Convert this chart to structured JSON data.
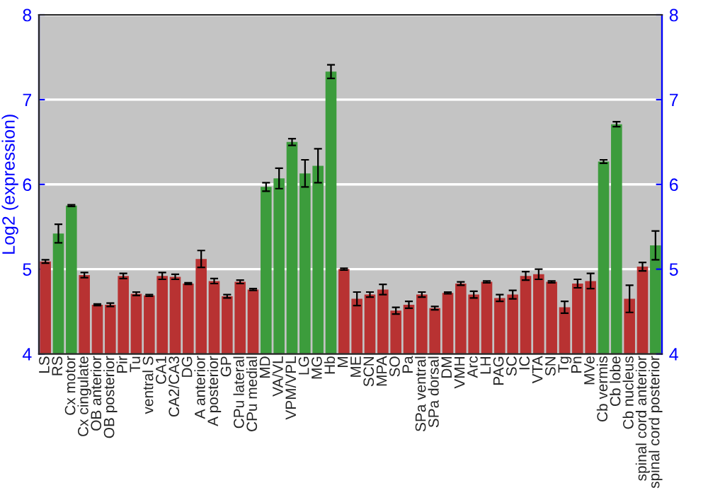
{
  "chart_data": {
    "type": "bar",
    "ylabel": "Log2 (expression)",
    "categories": [
      "LS",
      "RS",
      "Cx motor",
      "Cx cingulate",
      "OB anterior",
      "OB posterior",
      "Pir",
      "Tu",
      "ventral S",
      "CA1",
      "CA2/CA3",
      "DG",
      "A anterior",
      "A posterior",
      "GP",
      "CPu lateral",
      "CPu medial",
      "MD",
      "VA/VL",
      "VPM/VPL",
      "LG",
      "MG",
      "Hb",
      "M",
      "ME",
      "SCN",
      "MPA",
      "SO",
      "Pa",
      "SPa ventral",
      "SPa dorsal",
      "DM",
      "VMH",
      "Arc",
      "LH",
      "PAG",
      "SC",
      "IC",
      "VTA",
      "SN",
      "Tg",
      "Pn",
      "MVe",
      "Cb vermis",
      "Cb lobe",
      "Cb nucleus",
      "spinal cord anterior",
      "spinal cord posterior"
    ],
    "values": [
      5.09,
      5.42,
      5.75,
      4.93,
      4.58,
      4.58,
      4.92,
      4.71,
      4.69,
      4.92,
      4.91,
      4.83,
      5.12,
      4.86,
      4.68,
      4.85,
      4.76,
      5.97,
      6.07,
      6.5,
      6.13,
      6.22,
      7.33,
      5.0,
      4.65,
      4.7,
      4.76,
      4.51,
      4.58,
      4.7,
      4.54,
      4.72,
      4.83,
      4.7,
      4.85,
      4.66,
      4.7,
      4.92,
      4.94,
      4.85,
      4.55,
      4.83,
      4.86,
      6.27,
      6.71,
      4.65,
      5.03,
      5.28
    ],
    "errors": [
      0.02,
      0.11,
      0.01,
      0.03,
      0.01,
      0.02,
      0.03,
      0.02,
      0.01,
      0.04,
      0.03,
      0.01,
      0.1,
      0.03,
      0.02,
      0.02,
      0.01,
      0.05,
      0.12,
      0.04,
      0.16,
      0.2,
      0.08,
      0.01,
      0.08,
      0.03,
      0.06,
      0.04,
      0.04,
      0.03,
      0.02,
      0.01,
      0.02,
      0.04,
      0.01,
      0.04,
      0.05,
      0.05,
      0.06,
      0.01,
      0.07,
      0.05,
      0.09,
      0.02,
      0.03,
      0.16,
      0.05,
      0.17
    ],
    "colors": [
      "#b83232",
      "#3c9c3c",
      "#3c9c3c",
      "#b83232",
      "#b83232",
      "#b83232",
      "#b83232",
      "#b83232",
      "#b83232",
      "#b83232",
      "#b83232",
      "#b83232",
      "#b83232",
      "#b83232",
      "#b83232",
      "#b83232",
      "#b83232",
      "#3c9c3c",
      "#3c9c3c",
      "#3c9c3c",
      "#3c9c3c",
      "#3c9c3c",
      "#3c9c3c",
      "#b83232",
      "#b83232",
      "#b83232",
      "#b83232",
      "#b83232",
      "#b83232",
      "#b83232",
      "#b83232",
      "#b83232",
      "#b83232",
      "#b83232",
      "#b83232",
      "#b83232",
      "#b83232",
      "#b83232",
      "#b83232",
      "#b83232",
      "#b83232",
      "#b83232",
      "#b83232",
      "#3c9c3c",
      "#3c9c3c",
      "#b83232",
      "#b83232",
      "#3c9c3c"
    ],
    "ylim": [
      4,
      8
    ],
    "yticks": [
      4,
      5,
      6,
      7,
      8
    ],
    "y2lim": [
      4,
      8
    ],
    "y2ticks": [
      4,
      5,
      6,
      7,
      8
    ],
    "grid": "y",
    "legend": false
  }
}
